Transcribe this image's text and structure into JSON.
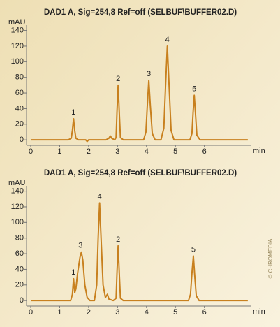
{
  "chart_data": [
    {
      "type": "line",
      "title": "DAD1 A, Sig=254,8 Ref=off (SELBUF\\BUFFER02.D)",
      "x_label": "min",
      "y_label": "mAU",
      "xlim": [
        0,
        7.6
      ],
      "ylim": [
        -7,
        145
      ],
      "xticks": [
        0,
        1,
        2,
        3,
        4,
        5,
        6
      ],
      "yticks": [
        0,
        20,
        40,
        60,
        80,
        100,
        120,
        140
      ],
      "grid": false,
      "series": [
        {
          "name": "DAD1 A",
          "color": "#c8801e",
          "x": [
            0,
            1.3,
            1.4,
            1.44,
            1.48,
            1.52,
            1.56,
            1.65,
            1.9,
            1.95,
            2.0,
            2.6,
            2.7,
            2.75,
            2.8,
            2.9,
            2.95,
            2.98,
            3.02,
            3.06,
            3.1,
            3.2,
            3.9,
            3.98,
            4.03,
            4.08,
            4.13,
            4.2,
            4.3,
            4.5,
            4.6,
            4.66,
            4.72,
            4.78,
            4.85,
            4.95,
            5.5,
            5.57,
            5.61,
            5.65,
            5.69,
            5.74,
            5.85,
            7.5
          ],
          "values": [
            0,
            0,
            2,
            12,
            27,
            12,
            2,
            0,
            0,
            -2,
            0,
            0,
            2,
            5,
            2,
            0,
            3,
            35,
            70,
            35,
            3,
            0,
            0,
            10,
            45,
            76,
            45,
            8,
            0,
            0,
            15,
            70,
            120,
            70,
            12,
            0,
            0,
            8,
            35,
            57,
            35,
            6,
            0,
            0
          ]
        }
      ],
      "annotations": [
        {
          "text": "1",
          "x": 1.48,
          "y": 27
        },
        {
          "text": "2",
          "x": 3.02,
          "y": 70
        },
        {
          "text": "3",
          "x": 4.08,
          "y": 76
        },
        {
          "text": "4",
          "x": 4.72,
          "y": 120
        },
        {
          "text": "5",
          "x": 5.65,
          "y": 57
        }
      ]
    },
    {
      "type": "line",
      "title": "DAD1 A, Sig=254,8 Ref=off (SELBUF\\BUFFER02.D)",
      "x_label": "min",
      "y_label": "mAU",
      "xlim": [
        0,
        7.6
      ],
      "ylim": [
        -7,
        145
      ],
      "xticks": [
        0,
        1,
        2,
        3,
        4,
        5,
        6
      ],
      "yticks": [
        0,
        20,
        40,
        60,
        80,
        100,
        120,
        140
      ],
      "grid": false,
      "series": [
        {
          "name": "DAD1 A",
          "color": "#c8801e",
          "x": [
            0,
            1.38,
            1.44,
            1.48,
            1.52,
            1.56,
            1.62,
            1.7,
            1.75,
            1.8,
            1.87,
            1.95,
            2.05,
            2.2,
            2.28,
            2.33,
            2.38,
            2.43,
            2.5,
            2.58,
            2.65,
            2.7,
            2.85,
            2.95,
            2.98,
            3.02,
            3.06,
            3.1,
            3.2,
            5.45,
            5.52,
            5.57,
            5.62,
            5.66,
            5.72,
            5.82,
            7.5
          ],
          "values": [
            0,
            0,
            8,
            28,
            10,
            15,
            35,
            55,
            62,
            52,
            20,
            4,
            0,
            0,
            20,
            80,
            125,
            80,
            20,
            4,
            8,
            2,
            0,
            3,
            35,
            70,
            35,
            3,
            0,
            0,
            8,
            35,
            57,
            35,
            6,
            0,
            0
          ]
        }
      ],
      "annotations": [
        {
          "text": "1",
          "x": 1.48,
          "y": 28
        },
        {
          "text": "3",
          "x": 1.72,
          "y": 62
        },
        {
          "text": "4",
          "x": 2.38,
          "y": 125
        },
        {
          "text": "2",
          "x": 3.02,
          "y": 70
        },
        {
          "text": "5",
          "x": 5.62,
          "y": 57
        }
      ]
    }
  ],
  "watermark": "© CHROMEDIA"
}
